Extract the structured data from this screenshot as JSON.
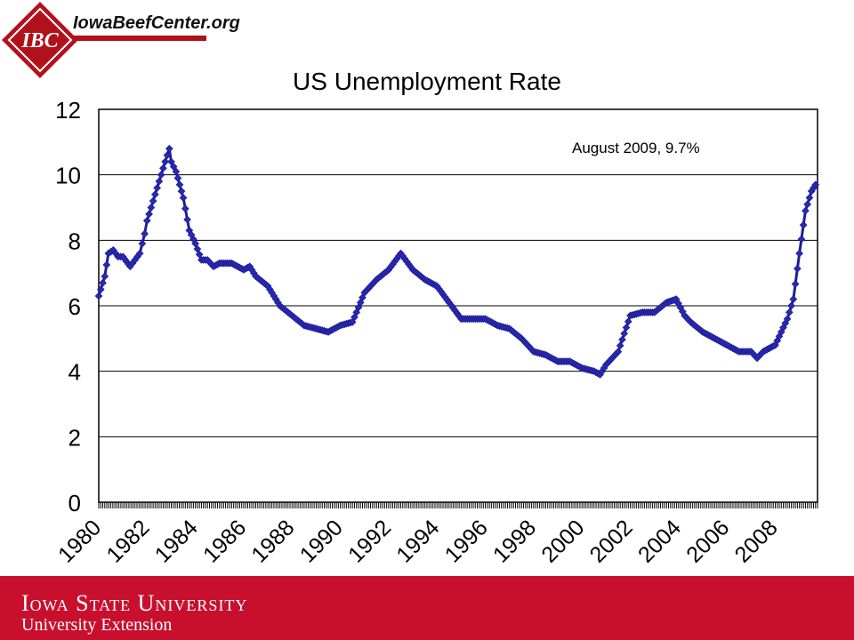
{
  "header": {
    "site_url": "IowaBeefCenter.org",
    "logo_text": "IBC"
  },
  "footer": {
    "line1": "Iowa State University",
    "line2": "University Extension"
  },
  "colors": {
    "brand_red": "#c8102e",
    "series": "#1f1f8f",
    "marker_fill": "#2828b8"
  },
  "chart_data": {
    "type": "line",
    "title": "US Unemployment Rate",
    "annotation": "August 2009, 9.7%",
    "xlabel": "",
    "ylabel": "",
    "ylim": [
      0,
      12
    ],
    "yticks": [
      0,
      2,
      4,
      6,
      8,
      10,
      12
    ],
    "xlim": [
      1980,
      2009.75
    ],
    "xticks": [
      "1980",
      "1982",
      "1984",
      "1986",
      "1988",
      "1990",
      "1992",
      "1994",
      "1996",
      "1998",
      "2000",
      "2002",
      "2004",
      "2006",
      "2008"
    ],
    "grid": true,
    "legend": "none",
    "series": [
      {
        "x": [
          1980.0,
          1980.25,
          1980.4,
          1980.6,
          1980.8,
          1981.0,
          1981.3,
          1981.5,
          1981.7,
          1981.9,
          1982.0,
          1982.25,
          1982.5,
          1982.75,
          1982.92,
          1983.0,
          1983.2,
          1983.5,
          1983.75,
          1984.0,
          1984.25,
          1984.5,
          1984.75,
          1985.0,
          1985.5,
          1986.0,
          1986.25,
          1986.5,
          1987.0,
          1987.5,
          1988.0,
          1988.5,
          1989.0,
          1989.5,
          1990.0,
          1990.5,
          1991.0,
          1991.5,
          1992.0,
          1992.5,
          1993.0,
          1993.5,
          1994.0,
          1994.5,
          1995.0,
          1995.5,
          1996.0,
          1996.5,
          1997.0,
          1997.5,
          1998.0,
          1998.5,
          1999.0,
          1999.5,
          2000.0,
          2000.5,
          2000.75,
          2001.0,
          2001.5,
          2002.0,
          2002.5,
          2003.0,
          2003.5,
          2003.9,
          2004.25,
          2004.5,
          2005.0,
          2005.5,
          2006.0,
          2006.5,
          2007.0,
          2007.25,
          2007.5,
          2008.0,
          2008.5,
          2008.75,
          2009.0,
          2009.25,
          2009.5,
          2009.67
        ],
        "values": [
          6.3,
          6.9,
          7.6,
          7.7,
          7.5,
          7.5,
          7.2,
          7.4,
          7.6,
          8.2,
          8.6,
          9.2,
          9.8,
          10.4,
          10.8,
          10.4,
          10.1,
          9.3,
          8.3,
          7.9,
          7.4,
          7.4,
          7.2,
          7.3,
          7.3,
          7.1,
          7.2,
          6.9,
          6.6,
          6.0,
          5.7,
          5.4,
          5.3,
          5.2,
          5.4,
          5.5,
          6.4,
          6.8,
          7.1,
          7.6,
          7.1,
          6.8,
          6.6,
          6.1,
          5.6,
          5.6,
          5.6,
          5.4,
          5.3,
          5.0,
          4.6,
          4.5,
          4.3,
          4.3,
          4.1,
          4.0,
          3.9,
          4.2,
          4.6,
          5.7,
          5.8,
          5.8,
          6.1,
          6.2,
          5.7,
          5.5,
          5.2,
          5.0,
          4.8,
          4.6,
          4.6,
          4.4,
          4.6,
          4.8,
          5.6,
          6.2,
          7.6,
          8.9,
          9.5,
          9.7
        ]
      }
    ]
  }
}
